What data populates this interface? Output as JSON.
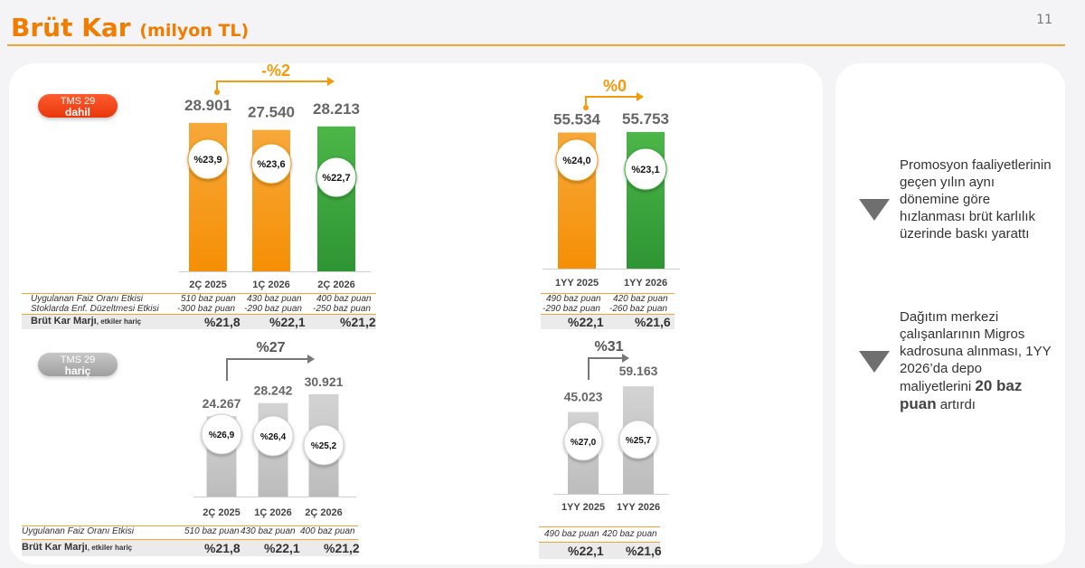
{
  "header": {
    "title": "Brüt Kar",
    "subtitle": "(milyon TL)",
    "page_number": "11"
  },
  "pills": {
    "top_line1": "TMS 29",
    "top_line2": "dahil",
    "bottom_line1": "TMS 29",
    "bottom_line2": "hariç"
  },
  "chart_data": [
    {
      "type": "bar",
      "categories": [
        "2Ç 2025",
        "1Ç 2026",
        "2Ç 2026"
      ],
      "values": [
        28901,
        27540,
        28213
      ],
      "value_labels": [
        "28.901",
        "27.540",
        "28.213"
      ],
      "margin_labels": [
        "%23,9",
        "%23,6",
        "%22,7"
      ],
      "growth_label": "-%2",
      "colors": [
        "#f59a0c",
        "#f59a0c",
        "#3aa83c"
      ]
    },
    {
      "type": "bar",
      "categories": [
        "1YY 2025",
        "1YY 2026"
      ],
      "values": [
        55534,
        55753
      ],
      "value_labels": [
        "55.534",
        "55.753"
      ],
      "margin_labels": [
        "%24,0",
        "%23,1"
      ],
      "growth_label": "%0",
      "colors": [
        "#f59a0c",
        "#3aa83c"
      ]
    },
    {
      "type": "bar",
      "categories": [
        "2Ç 2025",
        "1Ç 2026",
        "2Ç 2026"
      ],
      "values": [
        24267,
        28242,
        30921
      ],
      "value_labels": [
        "24.267",
        "28.242",
        "30.921"
      ],
      "margin_labels": [
        "%26,9",
        "%26,4",
        "%25,2"
      ],
      "growth_label": "%27",
      "colors": [
        "#c4c4c4",
        "#c4c4c4",
        "#c4c4c4"
      ]
    },
    {
      "type": "bar",
      "categories": [
        "1YY 2025",
        "1YY 2026"
      ],
      "values": [
        45023,
        59163
      ],
      "value_labels": [
        "45.023",
        "59.163"
      ],
      "margin_labels": [
        "%27,0",
        "%25,7"
      ],
      "growth_label": "%31",
      "colors": [
        "#c4c4c4",
        "#c4c4c4"
      ]
    }
  ],
  "tables": {
    "top_q": {
      "row1_label": "Uygulanan Faiz Oranı Etkisi",
      "row1_values": [
        "510 baz puan",
        "430 baz puan",
        "400 baz puan"
      ],
      "row2_label": "Stoklarda Enf. Düzeltmesi Etkisi",
      "row2_values": [
        "-300 baz puan",
        "-290 baz puan",
        "-250 baz puan"
      ],
      "margin_label": "Brüt Kar Marjı",
      "margin_suffix": ", etkiler hariç",
      "margin_values": [
        "%21,8",
        "%22,1",
        "%21,2"
      ]
    },
    "top_yy": {
      "row1_values": [
        "490 baz puan",
        "420 baz puan"
      ],
      "row2_values": [
        "-290 baz puan",
        "-260 baz puan"
      ],
      "margin_values": [
        "%22,1",
        "%21,6"
      ]
    },
    "bottom_q": {
      "row1_label": "Uygulanan Faiz Oranı Etkisi",
      "row1_values": [
        "510 baz puan",
        "430 baz puan",
        "400 baz puan"
      ],
      "margin_label": "Brüt Kar Marjı",
      "margin_suffix": ", etkiler hariç",
      "margin_values": [
        "%21,8",
        "%22,1",
        "%21,2"
      ]
    },
    "bottom_yy": {
      "row1_values": [
        "490 baz puan",
        "420 baz puan"
      ],
      "margin_values": [
        "%22,1",
        "%21,6"
      ]
    }
  },
  "notes": {
    "note1": "Promosyon faaliyetlerinin geçen yılın aynı dönemine göre hızlanması brüt karlılık üzerinde baskı yarattı",
    "note2_text": "Dağıtım merkezi çalışanlarının Migros kadrosuna alınması, 1YY 2026’da depo maliyetlerini",
    "note2_bold": "20 baz puan",
    "note2_tail": "artırdı"
  },
  "colors": {
    "accent": "#f07d00",
    "orange_bar": "#f59a0c",
    "green_bar": "#3aa83c",
    "gray_bar": "#c4c4c4"
  }
}
